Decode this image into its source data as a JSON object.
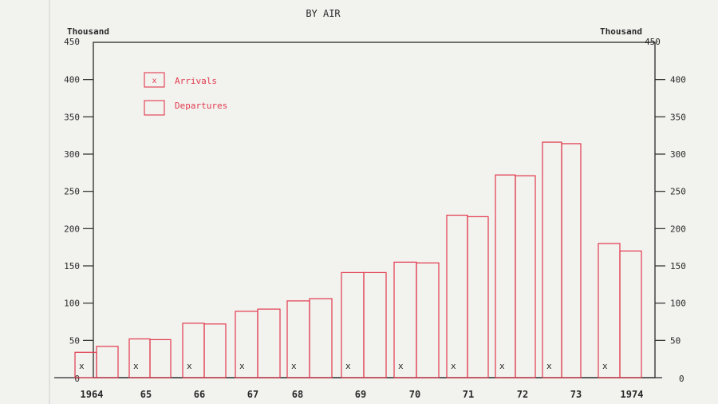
{
  "chart_data": {
    "type": "bar",
    "title": "BY AIR",
    "unit_left": "Thousand",
    "unit_right": "Thousand",
    "categories": [
      "1964",
      "65",
      "66",
      "67",
      "68",
      "69",
      "70",
      "71",
      "72",
      "73",
      "1974"
    ],
    "series": [
      {
        "name": "Arrivals",
        "marker": "x",
        "values": [
          34,
          52,
          73,
          89,
          103,
          141,
          155,
          218,
          272,
          316,
          180
        ]
      },
      {
        "name": "Departures",
        "values": [
          42,
          51,
          72,
          92,
          106,
          141,
          154,
          216,
          271,
          314,
          170
        ]
      }
    ],
    "ylim": [
      0,
      450
    ],
    "yticks": [
      "0",
      "50",
      "100",
      "150",
      "200",
      "250",
      "300",
      "350",
      "400",
      "450"
    ],
    "legend": "top-left",
    "grid": false,
    "colors": {
      "bars": "#e23a4d",
      "axes": "#2a2a2a"
    }
  }
}
